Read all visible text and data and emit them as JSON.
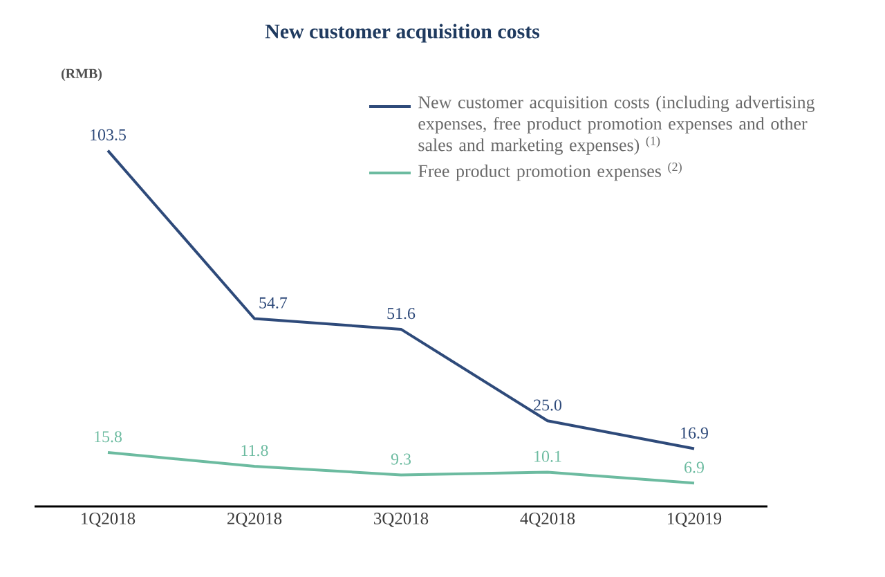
{
  "chart_data": {
    "type": "line",
    "title": "New customer acquisition costs",
    "annotations": [
      "(RMB)"
    ],
    "categories": [
      "1Q2018",
      "2Q2018",
      "3Q2018",
      "4Q2018",
      "1Q2019"
    ],
    "series": [
      {
        "name": "New customer acquisition costs (including advertising expenses, free product promotion expenses and other sales and marketing expenses) $^{(1)}$",
        "color": "#2e4a7a",
        "values": [
          103.5,
          54.7,
          51.6,
          25.0,
          16.9
        ],
        "value_labels": [
          "103.5",
          "54.7",
          "51.6",
          "25.0",
          "16.9"
        ]
      },
      {
        "name": "Free product promotion expenses $^{(2)}$",
        "color": "#6cbba0",
        "values": [
          15.8,
          11.8,
          9.3,
          10.1,
          6.9
        ],
        "value_labels": [
          "15.8",
          "11.8",
          "9.3",
          "10.1",
          "6.9"
        ]
      }
    ],
    "legend": "top right",
    "marker": "none",
    "line_style": "solid"
  }
}
